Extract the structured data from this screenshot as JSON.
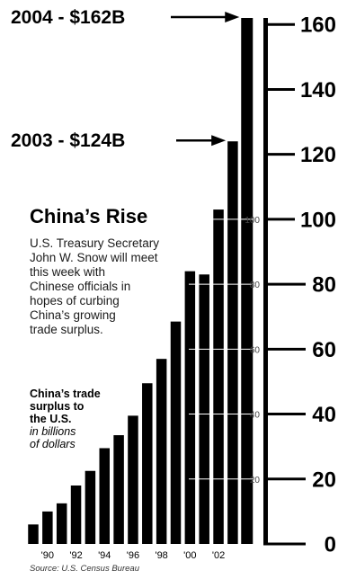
{
  "chart_data": {
    "type": "bar",
    "title": "China’s Rise",
    "description_lines": [
      "U.S. Treasury Secretary",
      "John W. Snow will meet",
      "this week with",
      "Chinese officials in",
      "hopes of curbing",
      "China’s growing",
      "trade surplus."
    ],
    "subhead_lines": [
      "China’s trade",
      "surplus to",
      "the U.S."
    ],
    "unit_lines": [
      "in billions",
      "of dollars"
    ],
    "source": "Source: U.S. Census Bureau",
    "years": [
      1989,
      1990,
      1991,
      1992,
      1993,
      1994,
      1995,
      1996,
      1997,
      1998,
      1999,
      2000,
      2001,
      2002,
      2003,
      2004
    ],
    "values": [
      6,
      10,
      12.5,
      18,
      22.5,
      29.5,
      33.5,
      39.5,
      49.5,
      57,
      68.5,
      84,
      83,
      103,
      124,
      162
    ],
    "x_tick_labels": [
      "'90",
      "'92",
      "'94",
      "'96",
      "'98",
      "'00",
      "'02"
    ],
    "x_tick_years": [
      1990,
      1992,
      1994,
      1996,
      1998,
      2000,
      2002
    ],
    "y_ticks": [
      0,
      20,
      40,
      60,
      80,
      100,
      120,
      140,
      160
    ],
    "inner_y_ticks": [
      20,
      40,
      60,
      80,
      100
    ],
    "ylim": [
      0,
      162
    ],
    "callouts": [
      {
        "year": 2004,
        "text": "2004 - $162B"
      },
      {
        "year": 2003,
        "text": "2003 - $124B"
      }
    ],
    "bar_color": "#000000"
  }
}
